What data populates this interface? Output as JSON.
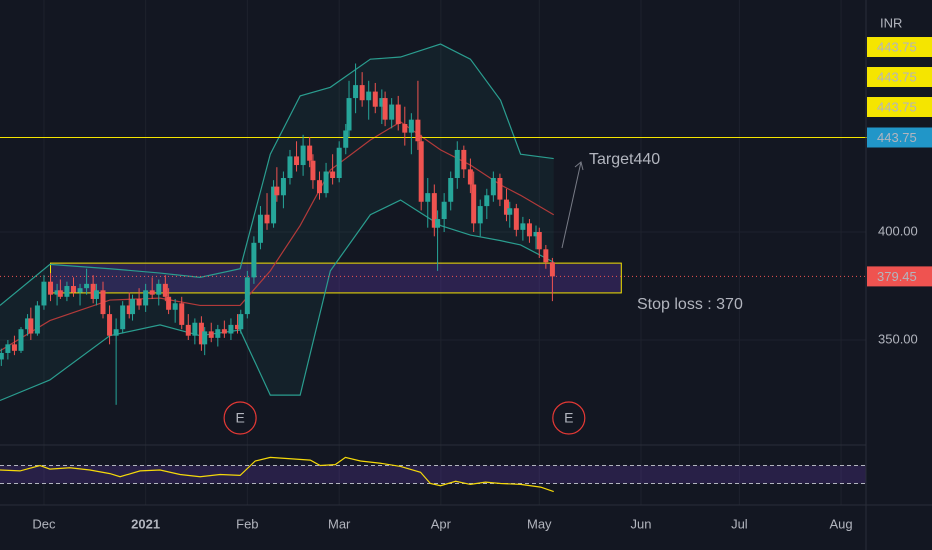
{
  "chart_data": {
    "type": "candlestick",
    "currency": "INR",
    "xlim": [
      -13.4,
      250.6
    ],
    "xticks": [
      {
        "value": 0,
        "label": "Dec"
      },
      {
        "value": 31,
        "label": "2021"
      },
      {
        "value": 62,
        "label": "Feb"
      },
      {
        "value": 90,
        "label": "Mar"
      },
      {
        "value": 121,
        "label": "Apr"
      },
      {
        "value": 151,
        "label": "May"
      },
      {
        "value": 182,
        "label": "Jun"
      },
      {
        "value": 212,
        "label": "Jul"
      },
      {
        "value": 243,
        "label": "Aug"
      }
    ],
    "ylim": [
      301.4,
      507.4
    ],
    "yticks": [
      {
        "value": 350,
        "label": "350.00"
      },
      {
        "value": 400,
        "label": "400.00"
      }
    ],
    "grid": true,
    "up_color": "#26a69a",
    "down_color": "#ef5350",
    "candles": {
      "x": [
        -13,
        -11,
        -9,
        -7,
        -5,
        -4,
        -2,
        0,
        2,
        4,
        5,
        7,
        9,
        11,
        13,
        15,
        16,
        18,
        20,
        22,
        24,
        26,
        27,
        29,
        31,
        33,
        35,
        37,
        38,
        40,
        42,
        44,
        46,
        48,
        49,
        51,
        53,
        55,
        57,
        59,
        60,
        62,
        64,
        66,
        68,
        70,
        71,
        73,
        75,
        77,
        79,
        81,
        82,
        84,
        86,
        88,
        90,
        92,
        93,
        95,
        97,
        99,
        101,
        103,
        104,
        106,
        108,
        110,
        112,
        114,
        115,
        117,
        119,
        120,
        122,
        124,
        126,
        128,
        130,
        131,
        133,
        135,
        137,
        139,
        141,
        142,
        144,
        146,
        148,
        150,
        151,
        153,
        155
      ],
      "open": [
        341,
        344,
        348,
        345,
        355,
        360,
        353,
        366,
        377,
        371,
        373,
        370,
        375,
        372,
        374,
        376,
        369,
        373,
        362,
        352,
        355,
        366,
        362,
        369,
        366,
        373,
        371,
        376,
        370,
        364,
        367,
        357,
        352,
        358,
        348,
        354,
        351,
        355,
        353,
        357,
        355,
        362,
        379,
        395,
        408,
        404,
        421,
        417,
        425,
        435,
        431,
        440,
        433,
        424,
        418,
        428,
        425,
        439,
        447,
        462,
        468,
        461,
        465,
        458,
        462,
        452,
        459,
        450,
        446,
        452,
        442,
        414,
        418,
        402,
        406,
        414,
        425,
        438,
        429,
        422,
        404,
        412,
        417,
        425,
        415,
        408,
        411,
        401,
        404,
        398,
        400,
        392,
        386
      ],
      "high": [
        346,
        350,
        352,
        356,
        362,
        365,
        368,
        380,
        381,
        376,
        378,
        377,
        379,
        376,
        383,
        380,
        376,
        377,
        366,
        360,
        368,
        372,
        371,
        374,
        376,
        379,
        378,
        380,
        374,
        369,
        370,
        362,
        360,
        361,
        356,
        358,
        357,
        359,
        360,
        362,
        364,
        382,
        398,
        412,
        418,
        424,
        430,
        428,
        438,
        442,
        445,
        444,
        436,
        428,
        432,
        436,
        442,
        450,
        470,
        478,
        474,
        470,
        469,
        466,
        465,
        462,
        463,
        458,
        455,
        470,
        445,
        425,
        422,
        410,
        418,
        428,
        442,
        440,
        434,
        428,
        415,
        420,
        428,
        427,
        420,
        414,
        413,
        407,
        406,
        403,
        402,
        394,
        388
      ],
      "low": [
        338,
        341,
        343,
        344,
        352,
        350,
        352,
        364,
        368,
        366,
        369,
        368,
        370,
        366,
        371,
        367,
        366,
        360,
        348,
        320,
        353,
        360,
        359,
        364,
        363,
        369,
        366,
        368,
        362,
        358,
        355,
        350,
        348,
        345,
        343,
        349,
        347,
        351,
        350,
        353,
        353,
        360,
        376,
        392,
        401,
        402,
        414,
        411,
        422,
        428,
        426,
        430,
        420,
        415,
        416,
        422,
        423,
        436,
        444,
        455,
        458,
        452,
        455,
        450,
        449,
        448,
        447,
        440,
        436,
        438,
        410,
        402,
        398,
        382,
        400,
        410,
        420,
        425,
        418,
        400,
        398,
        406,
        414,
        412,
        405,
        402,
        398,
        396,
        395,
        392,
        388,
        383,
        368
      ],
      "close": [
        344,
        348,
        345,
        355,
        360,
        353,
        366,
        377,
        371,
        373,
        370,
        375,
        372,
        374,
        376,
        369,
        373,
        362,
        352,
        355,
        366,
        362,
        369,
        366,
        373,
        371,
        376,
        370,
        364,
        367,
        357,
        352,
        358,
        348,
        354,
        351,
        355,
        353,
        357,
        355,
        362,
        379,
        395,
        408,
        404,
        421,
        417,
        425,
        435,
        431,
        440,
        433,
        424,
        418,
        428,
        425,
        439,
        447,
        462,
        468,
        461,
        465,
        458,
        462,
        452,
        459,
        450,
        446,
        452,
        442,
        414,
        418,
        402,
        406,
        414,
        425,
        438,
        429,
        422,
        404,
        412,
        417,
        425,
        415,
        408,
        411,
        401,
        404,
        398,
        400,
        392,
        386,
        379.45
      ]
    },
    "bands": {
      "x": [
        -13.4,
        1.8,
        20.1,
        35.4,
        47.6,
        59.8,
        69,
        78.1,
        87.3,
        99.5,
        108.7,
        120.9,
        130,
        139.2,
        145.3,
        155.4
      ],
      "upper": [
        366,
        385,
        383,
        381,
        379,
        383,
        436,
        463,
        467,
        480,
        481,
        487,
        480,
        461,
        436,
        434
      ],
      "middle": [
        345,
        359,
        368.5,
        369.4,
        366,
        366,
        382,
        403,
        428.7,
        442.6,
        451,
        438,
        431,
        421.8,
        417,
        408
      ],
      "lower": [
        322,
        331.5,
        352,
        357,
        352,
        354.6,
        324.5,
        324.5,
        382,
        408,
        414.8,
        403,
        398.6,
        396,
        394,
        386
      ],
      "band_color": "#2a9d8f",
      "middle_color": "#b23a3a"
    },
    "horizontal_line": {
      "value": 443.75,
      "label": "443.75",
      "color": "#f5e500"
    },
    "stacked_labels": [
      "443.75",
      "443.75",
      "443.75"
    ],
    "last_price": {
      "value": 379.45,
      "label": "379.45",
      "color": "#ef5350"
    },
    "zone": {
      "x": [
        2,
        176
      ],
      "y": [
        371.8,
        385.6
      ]
    },
    "annotations": {
      "target": "Target440",
      "stop_loss": "Stop loss : 370"
    },
    "earnings": {
      "x": [
        59.8,
        160
      ],
      "label": "E"
    },
    "rsi": {
      "ylim": [
        0,
        100
      ],
      "levels": [
        70,
        30
      ],
      "color": "#f5d90a",
      "x": [
        -13.4,
        -7.3,
        -1.2,
        1.8,
        7.9,
        14,
        20.1,
        23.2,
        29.3,
        35.4,
        41.5,
        47.6,
        53.7,
        59.8,
        64.4,
        69,
        75.1,
        81.2,
        84.2,
        88.8,
        91.9,
        96.5,
        102.6,
        108.7,
        114.8,
        117.8,
        120.9,
        125.5,
        130,
        134.6,
        139.2,
        145.3,
        151.4,
        155.4
      ],
      "values": [
        60,
        58,
        70,
        62,
        65,
        60,
        52,
        45,
        58,
        60,
        50,
        45,
        50,
        48,
        80,
        88,
        85,
        82,
        70,
        72,
        88,
        80,
        75,
        68,
        55,
        30,
        25,
        35,
        28,
        33,
        30,
        28,
        22,
        12
      ]
    }
  }
}
